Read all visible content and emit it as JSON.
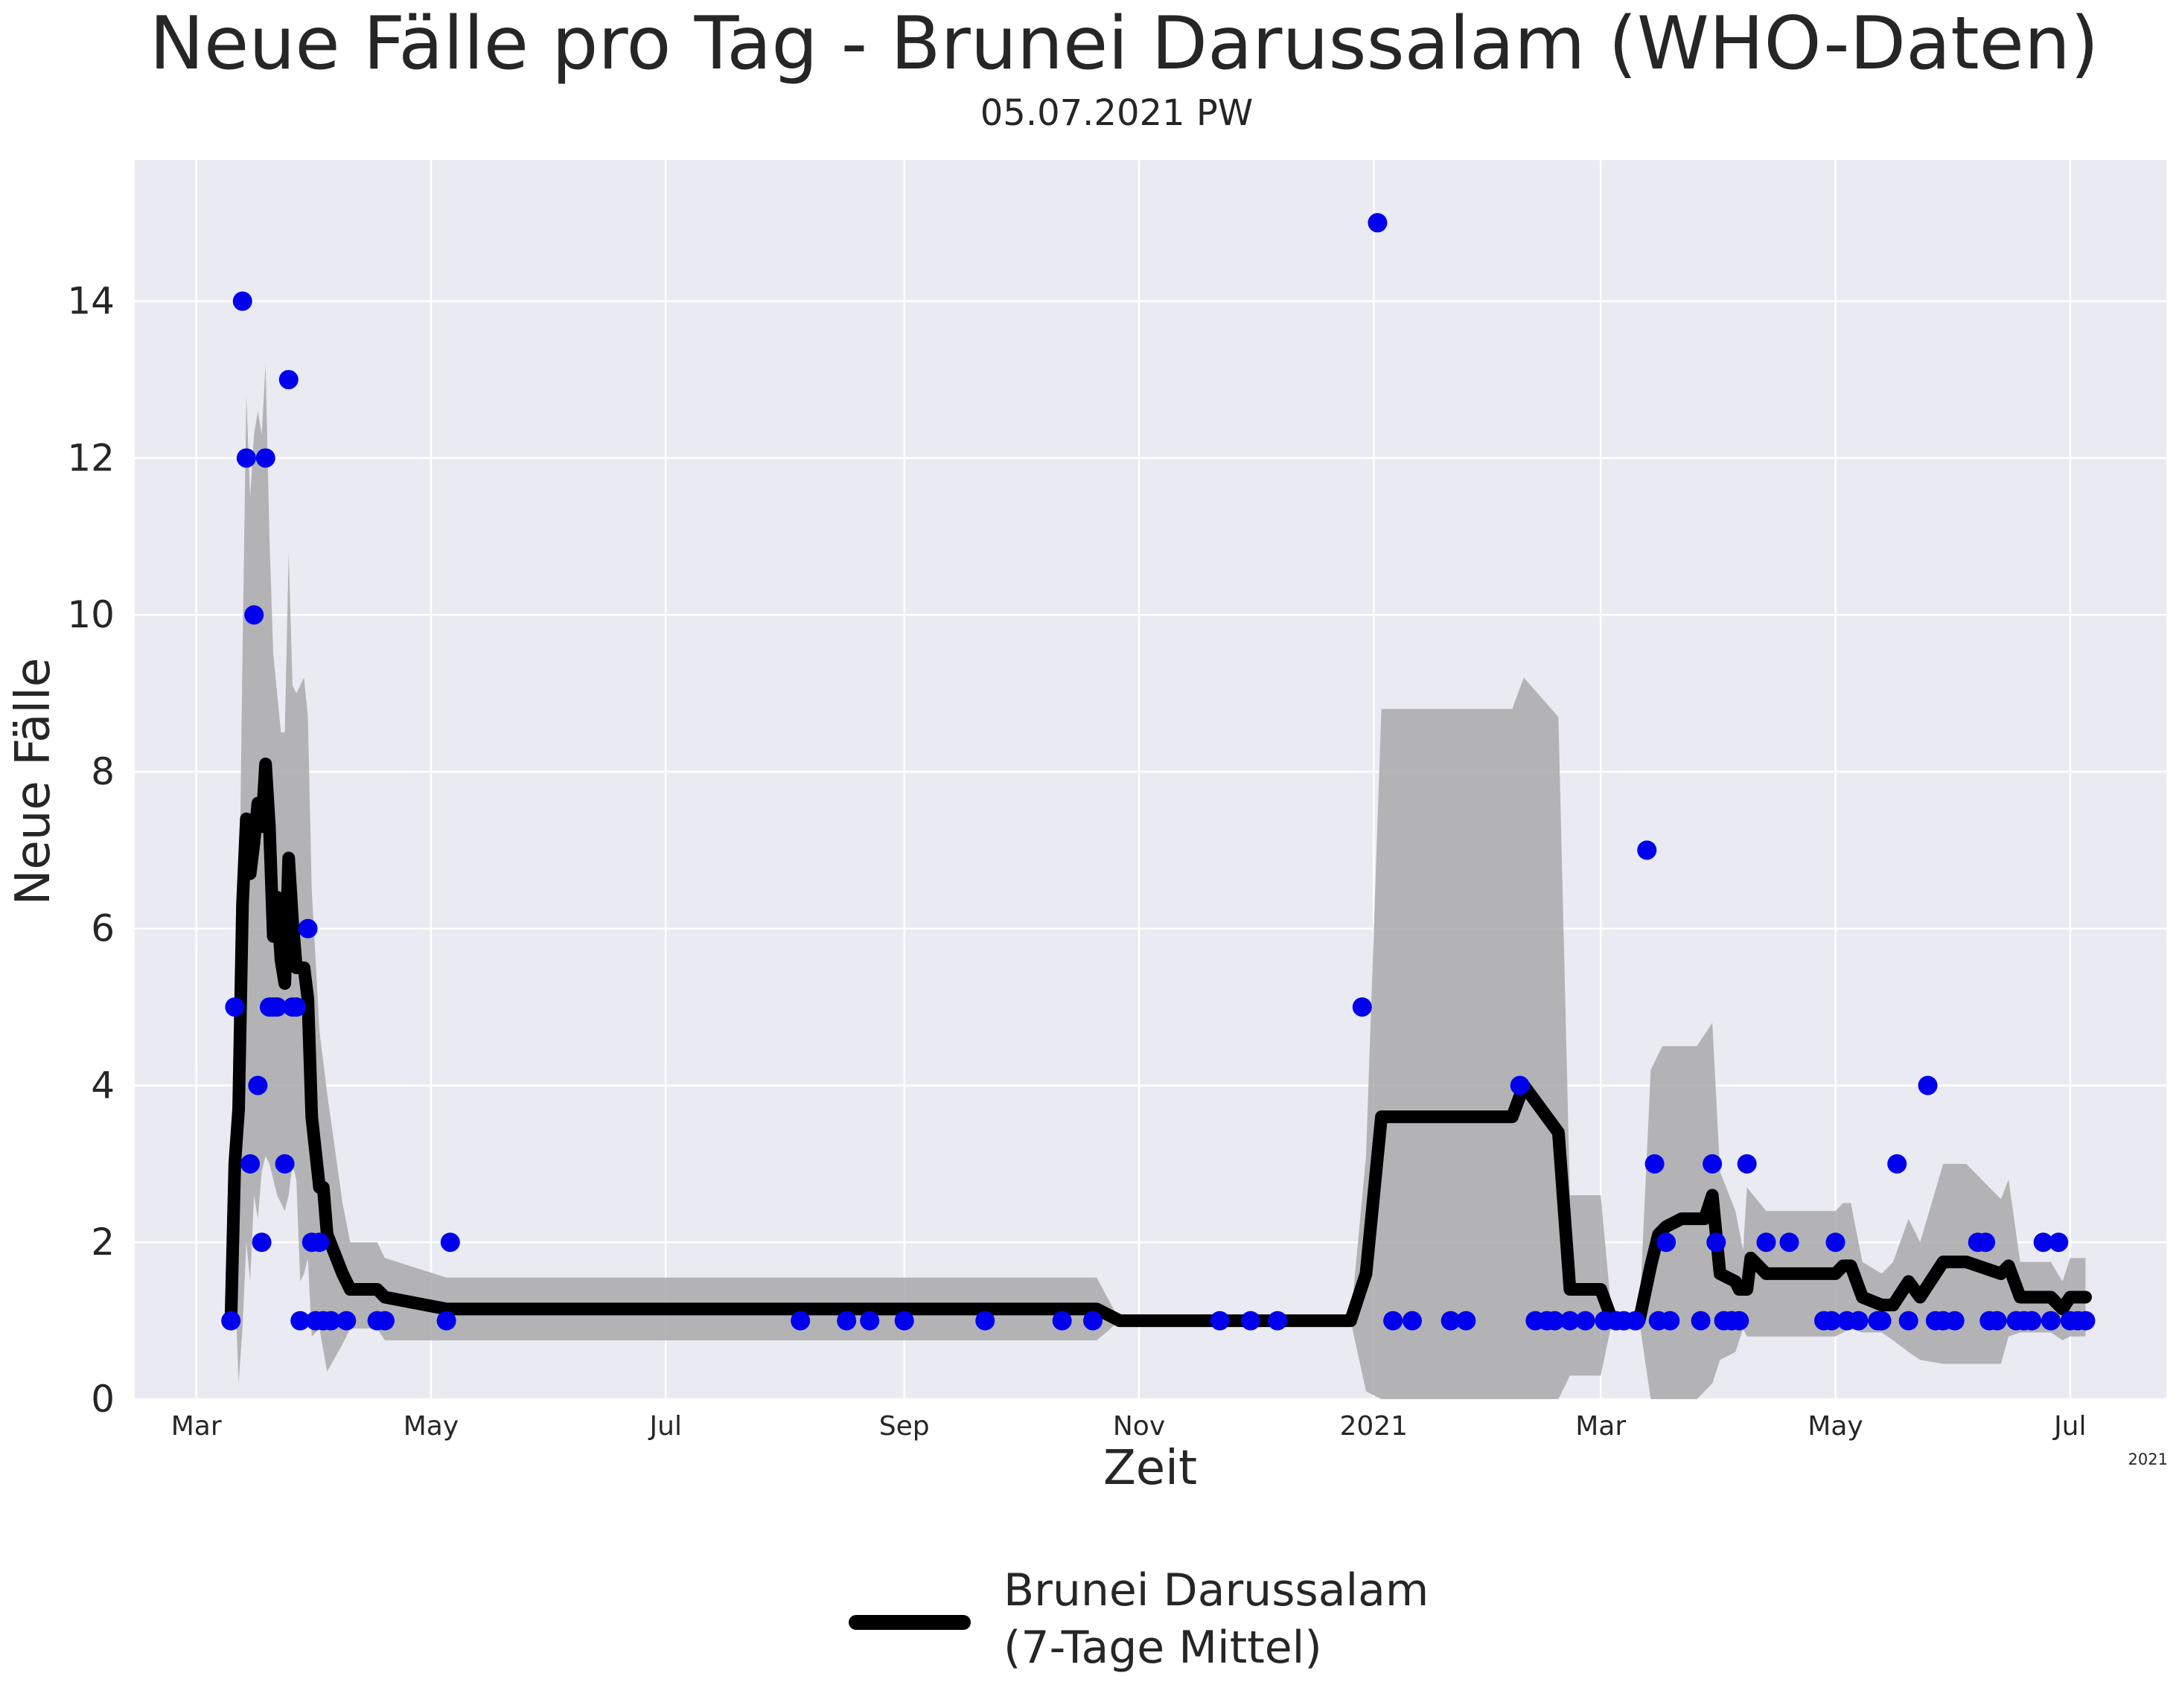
{
  "chart_data": {
    "type": "line",
    "title": "Neue Fälle pro Tag - Brunei Darussalam (WHO-Daten)",
    "subtitle": "05.07.2021 PW",
    "xlabel": "Zeit",
    "ylabel": "Neue Fälle",
    "x_axis_offset_label": "2021",
    "ylim": [
      0,
      15.8
    ],
    "xlim": [
      "2020-02-14",
      "2021-07-26"
    ],
    "grid": true,
    "legend_position": "bottom-center",
    "legend": [
      "Brunei Darussalam",
      "(7-Tage Mittel)"
    ],
    "colors": {
      "background": "#eaeaf2",
      "grid": "#ffffff",
      "points": "#0000ee",
      "line": "#000000",
      "band": "#a9a9ab"
    },
    "x_ticks": [
      {
        "date": "2020-03-01",
        "label": "Mar"
      },
      {
        "date": "2020-05-01",
        "label": "May"
      },
      {
        "date": "2020-07-01",
        "label": "Jul"
      },
      {
        "date": "2020-09-01",
        "label": "Sep"
      },
      {
        "date": "2020-11-01",
        "label": "Nov"
      },
      {
        "date": "2021-01-01",
        "label": "2021"
      },
      {
        "date": "2021-03-01",
        "label": "Mar"
      },
      {
        "date": "2021-05-01",
        "label": "May"
      },
      {
        "date": "2021-07-01",
        "label": "Jul"
      }
    ],
    "y_ticks": [
      0,
      2,
      4,
      6,
      8,
      10,
      12,
      14
    ],
    "series": [
      {
        "name": "Brunei Darussalam (7-Tage Mittel)",
        "kind": "line",
        "points": [
          [
            "2020-03-10",
            1
          ],
          [
            "2020-03-11",
            3
          ],
          [
            "2020-03-12",
            3.7
          ],
          [
            "2020-03-13",
            6.3
          ],
          [
            "2020-03-14",
            7.4
          ],
          [
            "2020-03-15",
            6.7
          ],
          [
            "2020-03-16",
            7.1
          ],
          [
            "2020-03-17",
            7.6
          ],
          [
            "2020-03-18",
            7.3
          ],
          [
            "2020-03-19",
            8.1
          ],
          [
            "2020-03-20",
            7.3
          ],
          [
            "2020-03-21",
            5.9
          ],
          [
            "2020-03-22",
            6.4
          ],
          [
            "2020-03-23",
            5.6
          ],
          [
            "2020-03-24",
            5.3
          ],
          [
            "2020-03-25",
            6.9
          ],
          [
            "2020-03-26",
            6.1
          ],
          [
            "2020-03-27",
            5.5
          ],
          [
            "2020-03-28",
            5.5
          ],
          [
            "2020-03-29",
            5.5
          ],
          [
            "2020-03-30",
            5.1
          ],
          [
            "2020-03-31",
            3.6
          ],
          [
            "2020-04-02",
            2.7
          ],
          [
            "2020-04-03",
            2.7
          ],
          [
            "2020-04-04",
            2.1
          ],
          [
            "2020-04-08",
            1.6
          ],
          [
            "2020-04-10",
            1.4
          ],
          [
            "2020-04-17",
            1.4
          ],
          [
            "2020-04-19",
            1.3
          ],
          [
            "2020-05-05",
            1.15
          ],
          [
            "2020-10-21",
            1.15
          ],
          [
            "2020-10-27",
            1.0
          ],
          [
            "2020-12-26",
            1.0
          ],
          [
            "2020-12-30",
            1.6
          ],
          [
            "2021-01-03",
            3.6
          ],
          [
            "2021-02-06",
            3.6
          ],
          [
            "2021-02-09",
            4.0
          ],
          [
            "2021-02-18",
            3.4
          ],
          [
            "2021-02-21",
            1.4
          ],
          [
            "2021-02-24",
            1.4
          ],
          [
            "2021-03-01",
            1.4
          ],
          [
            "2021-03-04",
            1.0
          ],
          [
            "2021-03-11",
            1.0
          ],
          [
            "2021-03-14",
            1.7
          ],
          [
            "2021-03-16",
            2.1
          ],
          [
            "2021-03-18",
            2.2
          ],
          [
            "2021-03-22",
            2.3
          ],
          [
            "2021-03-28",
            2.3
          ],
          [
            "2021-03-30",
            2.6
          ],
          [
            "2021-04-01",
            1.6
          ],
          [
            "2021-04-05",
            1.5
          ],
          [
            "2021-04-06",
            1.4
          ],
          [
            "2021-04-08",
            1.4
          ],
          [
            "2021-04-09",
            1.8
          ],
          [
            "2021-04-13",
            1.6
          ],
          [
            "2021-05-01",
            1.6
          ],
          [
            "2021-05-03",
            1.7
          ],
          [
            "2021-05-05",
            1.7
          ],
          [
            "2021-05-08",
            1.3
          ],
          [
            "2021-05-13",
            1.2
          ],
          [
            "2021-05-16",
            1.2
          ],
          [
            "2021-05-20",
            1.5
          ],
          [
            "2021-05-23",
            1.3
          ],
          [
            "2021-05-29",
            1.75
          ],
          [
            "2021-06-04",
            1.75
          ],
          [
            "2021-06-13",
            1.6
          ],
          [
            "2021-06-15",
            1.7
          ],
          [
            "2021-06-18",
            1.3
          ],
          [
            "2021-06-26",
            1.3
          ],
          [
            "2021-06-29",
            1.15
          ],
          [
            "2021-07-01",
            1.3
          ],
          [
            "2021-07-05",
            1.3
          ]
        ]
      },
      {
        "name": "band",
        "kind": "band",
        "points": [
          [
            "2020-03-10",
            1.0,
            1.0
          ],
          [
            "2020-03-11",
            1.5,
            4.2
          ],
          [
            "2020-03-12",
            0.2,
            5.7
          ],
          [
            "2020-03-13",
            0.9,
            9.5
          ],
          [
            "2020-03-14",
            2.0,
            12.8
          ],
          [
            "2020-03-15",
            1.5,
            11.5
          ],
          [
            "2020-03-16",
            2.6,
            12.3
          ],
          [
            "2020-03-17",
            2.3,
            12.6
          ],
          [
            "2020-03-18",
            2.9,
            12.3
          ],
          [
            "2020-03-19",
            3.1,
            13.2
          ],
          [
            "2020-03-20",
            3.0,
            11.0
          ],
          [
            "2020-03-21",
            2.8,
            9.5
          ],
          [
            "2020-03-22",
            2.6,
            9.0
          ],
          [
            "2020-03-23",
            2.5,
            8.5
          ],
          [
            "2020-03-24",
            2.4,
            8.5
          ],
          [
            "2020-03-25",
            2.6,
            10.8
          ],
          [
            "2020-03-26",
            3.0,
            9.1
          ],
          [
            "2020-03-27",
            2.8,
            9.0
          ],
          [
            "2020-03-28",
            1.5,
            9.1
          ],
          [
            "2020-03-29",
            1.6,
            9.2
          ],
          [
            "2020-03-30",
            1.8,
            8.7
          ],
          [
            "2020-03-31",
            0.8,
            6.5
          ],
          [
            "2020-04-02",
            0.9,
            4.7
          ],
          [
            "2020-04-04",
            0.35,
            3.9
          ],
          [
            "2020-04-08",
            0.7,
            2.5
          ],
          [
            "2020-04-10",
            0.9,
            2.0
          ],
          [
            "2020-04-17",
            0.9,
            2.0
          ],
          [
            "2020-04-19",
            0.75,
            1.8
          ],
          [
            "2020-05-05",
            0.75,
            1.55
          ],
          [
            "2020-10-21",
            0.75,
            1.55
          ],
          [
            "2020-10-27",
            1.0,
            1.0
          ],
          [
            "2020-12-26",
            1.0,
            1.0
          ],
          [
            "2020-12-30",
            0.1,
            3.1
          ],
          [
            "2021-01-03",
            -0.3,
            8.8
          ],
          [
            "2021-02-06",
            -0.3,
            8.8
          ],
          [
            "2021-02-09",
            -0.3,
            9.2
          ],
          [
            "2021-02-18",
            -0.3,
            8.7
          ],
          [
            "2021-02-21",
            0.3,
            2.6
          ],
          [
            "2021-03-01",
            0.3,
            2.6
          ],
          [
            "2021-03-04",
            1.0,
            1.0
          ],
          [
            "2021-03-11",
            1.0,
            1.0
          ],
          [
            "2021-03-14",
            -0.3,
            4.2
          ],
          [
            "2021-03-17",
            -0.3,
            4.5
          ],
          [
            "2021-03-26",
            0.0,
            4.5
          ],
          [
            "2021-03-30",
            0.2,
            4.8
          ],
          [
            "2021-04-01",
            0.5,
            2.9
          ],
          [
            "2021-04-05",
            0.6,
            2.4
          ],
          [
            "2021-04-07",
            0.9,
            1.9
          ],
          [
            "2021-04-08",
            0.8,
            2.7
          ],
          [
            "2021-04-13",
            0.8,
            2.4
          ],
          [
            "2021-05-01",
            0.8,
            2.4
          ],
          [
            "2021-05-03",
            0.85,
            2.5
          ],
          [
            "2021-05-05",
            0.9,
            2.5
          ],
          [
            "2021-05-08",
            0.85,
            1.75
          ],
          [
            "2021-05-13",
            0.85,
            1.6
          ],
          [
            "2021-05-16",
            0.75,
            1.75
          ],
          [
            "2021-05-20",
            0.6,
            2.3
          ],
          [
            "2021-05-23",
            0.5,
            2.0
          ],
          [
            "2021-05-29",
            0.45,
            3.0
          ],
          [
            "2021-06-04",
            0.45,
            3.0
          ],
          [
            "2021-06-13",
            0.45,
            2.55
          ],
          [
            "2021-06-15",
            0.8,
            2.8
          ],
          [
            "2021-06-18",
            0.85,
            1.75
          ],
          [
            "2021-06-26",
            0.85,
            1.75
          ],
          [
            "2021-06-29",
            0.75,
            1.5
          ],
          [
            "2021-07-01",
            0.8,
            1.8
          ],
          [
            "2021-07-05",
            0.8,
            1.8
          ]
        ]
      },
      {
        "name": "points",
        "kind": "scatter",
        "points": [
          [
            "2020-03-10",
            1
          ],
          [
            "2020-03-11",
            5
          ],
          [
            "2020-03-13",
            14
          ],
          [
            "2020-03-14",
            12
          ],
          [
            "2020-03-15",
            3
          ],
          [
            "2020-03-16",
            10
          ],
          [
            "2020-03-17",
            4
          ],
          [
            "2020-03-18",
            2
          ],
          [
            "2020-03-19",
            12
          ],
          [
            "2020-03-20",
            5
          ],
          [
            "2020-03-21",
            5
          ],
          [
            "2020-03-22",
            5
          ],
          [
            "2020-03-24",
            3
          ],
          [
            "2020-03-25",
            13
          ],
          [
            "2020-03-26",
            5
          ],
          [
            "2020-03-27",
            5
          ],
          [
            "2020-03-28",
            1
          ],
          [
            "2020-03-30",
            6
          ],
          [
            "2020-04-01",
            1
          ],
          [
            "2020-03-31",
            2
          ],
          [
            "2020-04-02",
            2
          ],
          [
            "2020-04-03",
            1
          ],
          [
            "2020-04-05",
            1
          ],
          [
            "2020-04-09",
            1
          ],
          [
            "2020-04-17",
            1
          ],
          [
            "2020-04-19",
            1
          ],
          [
            "2020-05-05",
            1
          ],
          [
            "2020-05-06",
            2
          ],
          [
            "2020-08-05",
            1
          ],
          [
            "2020-08-17",
            1
          ],
          [
            "2020-08-23",
            1
          ],
          [
            "2020-09-01",
            1
          ],
          [
            "2020-09-22",
            1
          ],
          [
            "2020-10-12",
            1
          ],
          [
            "2020-10-20",
            1
          ],
          [
            "2020-11-22",
            1
          ],
          [
            "2020-11-30",
            1
          ],
          [
            "2020-12-07",
            1
          ],
          [
            "2020-12-29",
            5
          ],
          [
            "2021-01-02",
            15
          ],
          [
            "2021-01-06",
            1
          ],
          [
            "2021-01-11",
            1
          ],
          [
            "2021-01-21",
            1
          ],
          [
            "2021-01-25",
            1
          ],
          [
            "2021-02-08",
            4
          ],
          [
            "2021-02-12",
            1
          ],
          [
            "2021-02-15",
            1
          ],
          [
            "2021-02-17",
            1
          ],
          [
            "2021-02-21",
            1
          ],
          [
            "2021-02-25",
            1
          ],
          [
            "2021-03-02",
            1
          ],
          [
            "2021-03-05",
            1
          ],
          [
            "2021-03-07",
            1
          ],
          [
            "2021-03-10",
            1
          ],
          [
            "2021-03-13",
            7
          ],
          [
            "2021-03-15",
            3
          ],
          [
            "2021-03-16",
            1
          ],
          [
            "2021-03-18",
            2
          ],
          [
            "2021-03-19",
            1
          ],
          [
            "2021-03-27",
            1
          ],
          [
            "2021-03-30",
            3
          ],
          [
            "2021-03-31",
            2
          ],
          [
            "2021-04-02",
            1
          ],
          [
            "2021-04-04",
            1
          ],
          [
            "2021-04-06",
            1
          ],
          [
            "2021-04-08",
            3
          ],
          [
            "2021-04-13",
            2
          ],
          [
            "2021-04-19",
            2
          ],
          [
            "2021-04-28",
            1
          ],
          [
            "2021-04-30",
            1
          ],
          [
            "2021-05-01",
            2
          ],
          [
            "2021-05-04",
            1
          ],
          [
            "2021-05-07",
            1
          ],
          [
            "2021-05-12",
            1
          ],
          [
            "2021-05-13",
            1
          ],
          [
            "2021-05-17",
            3
          ],
          [
            "2021-05-20",
            1
          ],
          [
            "2021-05-25",
            4
          ],
          [
            "2021-05-27",
            1
          ],
          [
            "2021-05-29",
            1
          ],
          [
            "2021-06-01",
            1
          ],
          [
            "2021-06-07",
            2
          ],
          [
            "2021-06-09",
            2
          ],
          [
            "2021-06-10",
            1
          ],
          [
            "2021-06-12",
            1
          ],
          [
            "2021-06-17",
            1
          ],
          [
            "2021-06-19",
            1
          ],
          [
            "2021-06-21",
            1
          ],
          [
            "2021-06-24",
            2
          ],
          [
            "2021-06-26",
            1
          ],
          [
            "2021-06-28",
            2
          ],
          [
            "2021-07-01",
            1
          ],
          [
            "2021-07-03",
            1
          ],
          [
            "2021-07-05",
            1
          ]
        ]
      }
    ]
  }
}
